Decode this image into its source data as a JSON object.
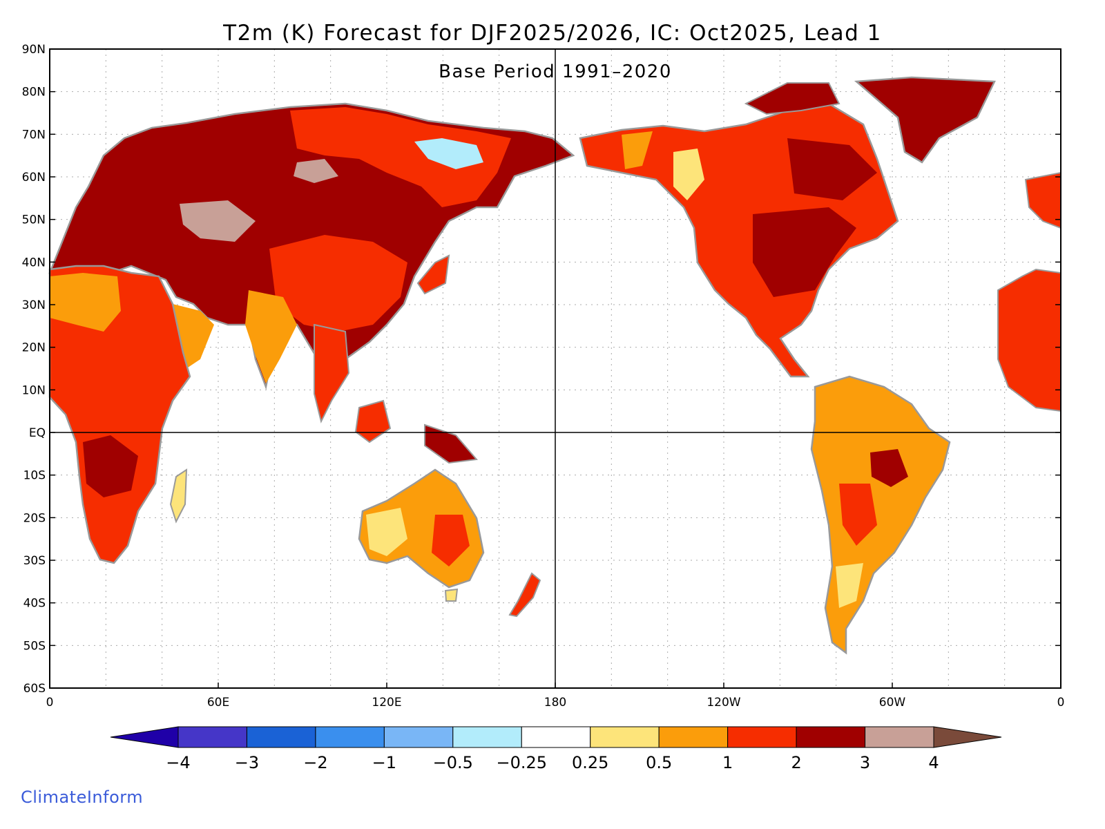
{
  "map": {
    "title": "T2m (K) Forecast for DJF2025/2026, IC: Oct2025, Lead 1",
    "subtitle": "Base Period 1991–2020",
    "lat_labels": [
      "90N",
      "80N",
      "70N",
      "60N",
      "50N",
      "40N",
      "30N",
      "20N",
      "10N",
      "EQ",
      "10S",
      "20S",
      "30S",
      "40S",
      "50S",
      "60S"
    ],
    "lat_values": [
      90,
      80,
      70,
      60,
      50,
      40,
      30,
      20,
      10,
      0,
      -10,
      -20,
      -30,
      -40,
      -50,
      -60
    ],
    "lon_labels": [
      "0",
      "60E",
      "120E",
      "180",
      "120W",
      "60W",
      "0"
    ],
    "lon_values": [
      0,
      60,
      120,
      180,
      240,
      300,
      360
    ],
    "lat_range": [
      -60,
      90
    ],
    "lon_range": [
      0,
      360
    ],
    "grid": true
  },
  "colorbar": {
    "tick_labels": [
      "−4",
      "−3",
      "−2",
      "−1",
      "−0.5",
      "−0.25",
      "0.25",
      "0.5",
      "1",
      "2",
      "3",
      "4"
    ],
    "colors": [
      "#1f00a8",
      "#4536c8",
      "#1a62d6",
      "#3a8fee",
      "#79b6f6",
      "#b2ecfb",
      "#ffffff",
      "#fde47a",
      "#fb9d0b",
      "#f62d00",
      "#a00000",
      "#c8a097",
      "#7a4a3a"
    ]
  },
  "brand": "ClimateInform",
  "colors": {
    "coast": "#999999",
    "frame": "#000000",
    "grid": "#aaaaaa"
  }
}
